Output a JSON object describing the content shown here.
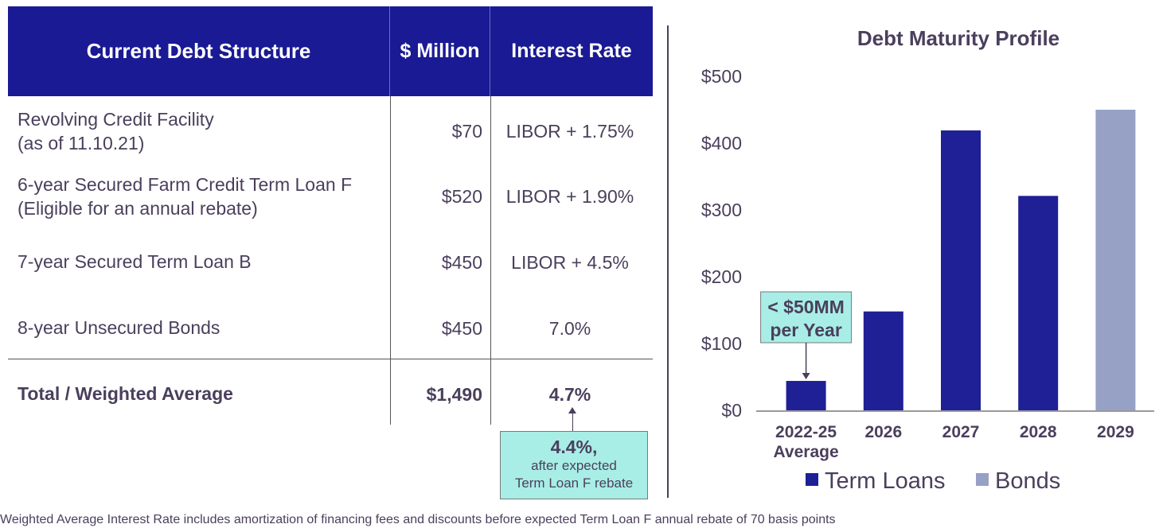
{
  "table": {
    "headers": [
      "Current Debt Structure",
      "$ Million",
      "Interest Rate"
    ],
    "rows": [
      {
        "label_line1": "Revolving Credit Facility",
        "label_line2": "(as of 11.10.21)",
        "amount": "$70",
        "rate": "LIBOR + 1.75%"
      },
      {
        "label_line1": "6-year Secured Farm Credit Term Loan F",
        "label_line2": "(Eligible for an annual rebate)",
        "amount": "$520",
        "rate": "LIBOR + 1.90%"
      },
      {
        "label_line1": "7-year Secured Term Loan B",
        "label_line2": "",
        "amount": "$450",
        "rate": "LIBOR + 4.5%"
      },
      {
        "label_line1": "8-year Unsecured Bonds",
        "label_line2": "",
        "amount": "$450",
        "rate": "7.0%"
      }
    ],
    "total": {
      "label": "Total / Weighted Average",
      "amount": "$1,490",
      "rate": "4.7%"
    },
    "rebate_callout": {
      "big": "4.4%,",
      "line1": "after expected",
      "line2": "Term Loan F rebate"
    }
  },
  "footnote": "Weighted Average Interest Rate includes amortization of financing fees and discounts before expected Term Loan F annual rebate of 70 basis points",
  "chart_data": {
    "type": "bar",
    "title": "Debt Maturity Profile",
    "categories": [
      "2022-25\nAverage",
      "2026",
      "2027",
      "2028",
      "2029"
    ],
    "category_lines": [
      [
        "2022-25",
        "Average"
      ],
      [
        "2026"
      ],
      [
        "2027"
      ],
      [
        "2028"
      ],
      [
        "2029"
      ]
    ],
    "values": [
      44,
      148,
      419,
      321,
      450
    ],
    "series_of_bar": [
      "Term Loans",
      "Term Loans",
      "Term Loans",
      "Term Loans",
      "Bonds"
    ],
    "series": [
      {
        "name": "Term Loans",
        "color": "#1f1f96"
      },
      {
        "name": "Bonds",
        "color": "#97a1c6"
      }
    ],
    "ylim": [
      0,
      500
    ],
    "yticks": [
      0,
      100,
      200,
      300,
      400,
      500
    ],
    "ytick_labels": [
      "$0",
      "$100",
      "$200",
      "$300",
      "$400",
      "$500"
    ],
    "legend_position": "bottom",
    "annotation": {
      "line1": "< $50MM",
      "line2": "per Year",
      "bg": "#a8eee6"
    }
  }
}
